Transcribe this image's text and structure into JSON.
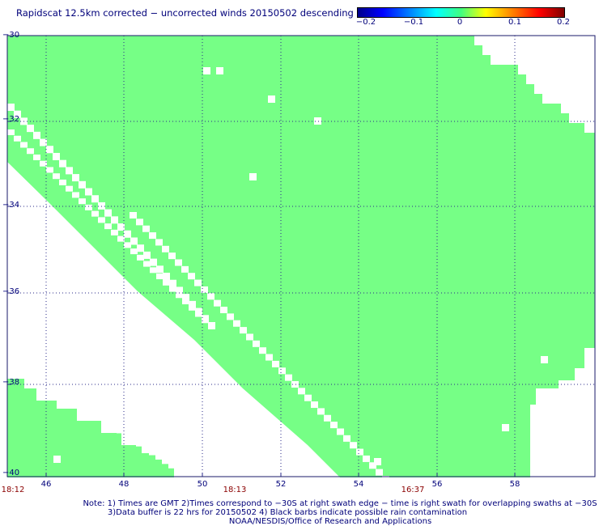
{
  "title": "Rapidscat 12.5km corrected − uncorrected winds 20150502 descending",
  "colorbar": {
    "labels": [
      "−0.2",
      "−0.1",
      "0",
      "0.1",
      "0.2"
    ],
    "range": [
      -0.2,
      0.2
    ]
  },
  "map": {
    "lat_labels": [
      "−30",
      "−32",
      "−34",
      "−36",
      "−38",
      "−40"
    ],
    "lon_labels": [
      "46",
      "48",
      "50",
      "52",
      "54",
      "56",
      "58"
    ],
    "time_labels": [
      "18:12",
      "18:13",
      "16:37"
    ],
    "swath_color": "#76ff86",
    "grid_color": "#2a2a8a"
  },
  "notes": {
    "line1": "Note: 1) Times are GMT 2)Times correspond to −30S at right swath edge − time is right swath for overlapping swaths at −30S",
    "line2": "3)Data buffer is 22 hrs for 20150502 4) Black barbs indicate possible rain contamination",
    "line3": "NOAA/NESDIS/Office of Research and Applications"
  }
}
